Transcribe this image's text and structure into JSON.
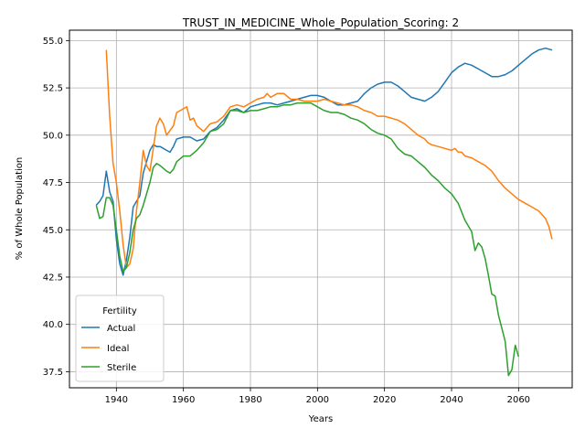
{
  "chart_data": {
    "type": "line",
    "title": "TRUST_IN_MEDICINE_Whole_Population_Scoring: 2",
    "xlabel": "Years",
    "ylabel": "% of Whole Population",
    "xlim": [
      1926,
      2076
    ],
    "ylim": [
      36.65,
      55.55
    ],
    "xticks": [
      1940,
      1960,
      1980,
      2000,
      2020,
      2040,
      2060
    ],
    "yticks": [
      37.5,
      40.0,
      42.5,
      45.0,
      47.5,
      50.0,
      52.5,
      55.0
    ],
    "ytick_labels": [
      "37.5",
      "40.0",
      "42.5",
      "45.0",
      "47.5",
      "50.0",
      "52.5",
      "55.0"
    ],
    "grid": true,
    "legend": {
      "title": "Fertility",
      "placement": "lower-left"
    },
    "colors": {
      "Actual": "#1f77b4",
      "Ideal": "#ff7f0e",
      "Sterile": "#2ca02c"
    },
    "series": [
      {
        "name": "Actual",
        "x": [
          1934,
          1935,
          1936,
          1937,
          1938,
          1939,
          1940,
          1941,
          1942,
          1943,
          1944,
          1945,
          1946,
          1947,
          1948,
          1950,
          1951,
          1952,
          1953,
          1955,
          1956,
          1957,
          1958,
          1960,
          1962,
          1964,
          1966,
          1968,
          1970,
          1972,
          1974,
          1976,
          1978,
          1980,
          1982,
          1984,
          1986,
          1988,
          1990,
          1992,
          1994,
          1996,
          1998,
          2000,
          2002,
          2004,
          2006,
          2008,
          2010,
          2012,
          2014,
          2016,
          2018,
          2020,
          2022,
          2024,
          2026,
          2028,
          2030,
          2032,
          2034,
          2036,
          2038,
          2040,
          2042,
          2044,
          2046,
          2048,
          2050,
          2052,
          2054,
          2056,
          2058,
          2060,
          2062,
          2064,
          2066,
          2068,
          2070
        ],
        "values": [
          46.3,
          46.5,
          46.8,
          48.1,
          47.0,
          46.5,
          44.5,
          43.2,
          42.6,
          43.4,
          44.6,
          46.2,
          46.5,
          46.8,
          48.0,
          49.2,
          49.5,
          49.4,
          49.4,
          49.2,
          49.1,
          49.4,
          49.8,
          49.9,
          49.9,
          49.7,
          49.8,
          50.2,
          50.4,
          50.8,
          51.3,
          51.4,
          51.2,
          51.5,
          51.6,
          51.7,
          51.7,
          51.6,
          51.7,
          51.8,
          51.9,
          52.0,
          52.1,
          52.1,
          52.0,
          51.8,
          51.6,
          51.6,
          51.7,
          51.8,
          52.2,
          52.5,
          52.7,
          52.8,
          52.8,
          52.6,
          52.3,
          52.0,
          51.9,
          51.8,
          52.0,
          52.3,
          52.8,
          53.3,
          53.6,
          53.8,
          53.7,
          53.5,
          53.3,
          53.1,
          53.1,
          53.2,
          53.4,
          53.7,
          54.0,
          54.3,
          54.5,
          54.6,
          54.5
        ]
      },
      {
        "name": "Ideal",
        "x": [
          1937,
          1938,
          1939,
          1940,
          1941,
          1942,
          1943,
          1944,
          1945,
          1946,
          1947,
          1948,
          1949,
          1950,
          1951,
          1952,
          1953,
          1954,
          1955,
          1957,
          1958,
          1960,
          1961,
          1962,
          1963,
          1964,
          1966,
          1968,
          1970,
          1972,
          1974,
          1976,
          1978,
          1980,
          1982,
          1984,
          1985,
          1986,
          1988,
          1990,
          1992,
          1994,
          1996,
          1998,
          2000,
          2002,
          2004,
          2006,
          2008,
          2010,
          2012,
          2014,
          2016,
          2018,
          2020,
          2022,
          2024,
          2026,
          2028,
          2030,
          2032,
          2033,
          2034,
          2036,
          2038,
          2040,
          2041,
          2042,
          2043,
          2044,
          2046,
          2048,
          2050,
          2052,
          2054,
          2056,
          2058,
          2060,
          2062,
          2064,
          2066,
          2068,
          2069,
          2070
        ],
        "values": [
          54.5,
          51.0,
          48.5,
          47.5,
          46.0,
          44.2,
          43.0,
          43.2,
          44.0,
          46.0,
          47.5,
          49.2,
          48.4,
          48.1,
          49.3,
          50.5,
          50.9,
          50.6,
          50.0,
          50.5,
          51.2,
          51.4,
          51.5,
          50.8,
          50.9,
          50.5,
          50.2,
          50.6,
          50.7,
          51.0,
          51.5,
          51.6,
          51.5,
          51.7,
          51.9,
          52.0,
          52.2,
          52.0,
          52.2,
          52.2,
          51.9,
          51.9,
          51.8,
          51.8,
          51.8,
          51.9,
          51.8,
          51.7,
          51.6,
          51.6,
          51.5,
          51.3,
          51.2,
          51.0,
          51.0,
          50.9,
          50.8,
          50.6,
          50.3,
          50.0,
          49.8,
          49.6,
          49.5,
          49.4,
          49.3,
          49.2,
          49.3,
          49.1,
          49.1,
          48.9,
          48.8,
          48.6,
          48.4,
          48.1,
          47.6,
          47.2,
          46.9,
          46.6,
          46.4,
          46.2,
          46.0,
          45.6,
          45.2,
          44.5
        ]
      },
      {
        "name": "Sterile",
        "x": [
          1934,
          1935,
          1936,
          1937,
          1938,
          1939,
          1940,
          1941,
          1942,
          1943,
          1944,
          1945,
          1946,
          1947,
          1948,
          1950,
          1951,
          1952,
          1953,
          1955,
          1956,
          1957,
          1958,
          1960,
          1962,
          1964,
          1966,
          1968,
          1970,
          1972,
          1974,
          1976,
          1978,
          1980,
          1982,
          1984,
          1986,
          1988,
          1990,
          1992,
          1994,
          1996,
          1998,
          2000,
          2002,
          2004,
          2006,
          2008,
          2010,
          2012,
          2014,
          2016,
          2018,
          2020,
          2022,
          2024,
          2026,
          2028,
          2030,
          2032,
          2034,
          2036,
          2038,
          2040,
          2042,
          2044,
          2046,
          2047,
          2048,
          2049,
          2050,
          2051,
          2052,
          2053,
          2054,
          2055,
          2056,
          2057,
          2058,
          2059,
          2060,
          2061
        ],
        "values": [
          46.3,
          45.6,
          45.7,
          46.7,
          46.7,
          46.3,
          45.0,
          43.6,
          42.8,
          43.0,
          43.8,
          45.0,
          45.6,
          45.8,
          46.3,
          47.5,
          48.3,
          48.5,
          48.4,
          48.1,
          48.0,
          48.2,
          48.6,
          48.9,
          48.9,
          49.2,
          49.6,
          50.2,
          50.3,
          50.6,
          51.3,
          51.3,
          51.2,
          51.3,
          51.3,
          51.4,
          51.5,
          51.5,
          51.6,
          51.6,
          51.7,
          51.7,
          51.7,
          51.5,
          51.3,
          51.2,
          51.2,
          51.1,
          50.9,
          50.8,
          50.6,
          50.3,
          50.1,
          50.0,
          49.8,
          49.3,
          49.0,
          48.9,
          48.6,
          48.3,
          47.9,
          47.6,
          47.2,
          46.9,
          46.4,
          45.5,
          44.9,
          43.9,
          44.3,
          44.1,
          43.5,
          42.6,
          41.6,
          41.5,
          40.5,
          39.8,
          39.1,
          37.3,
          37.6,
          38.9,
          38.3,
          null
        ]
      }
    ]
  }
}
